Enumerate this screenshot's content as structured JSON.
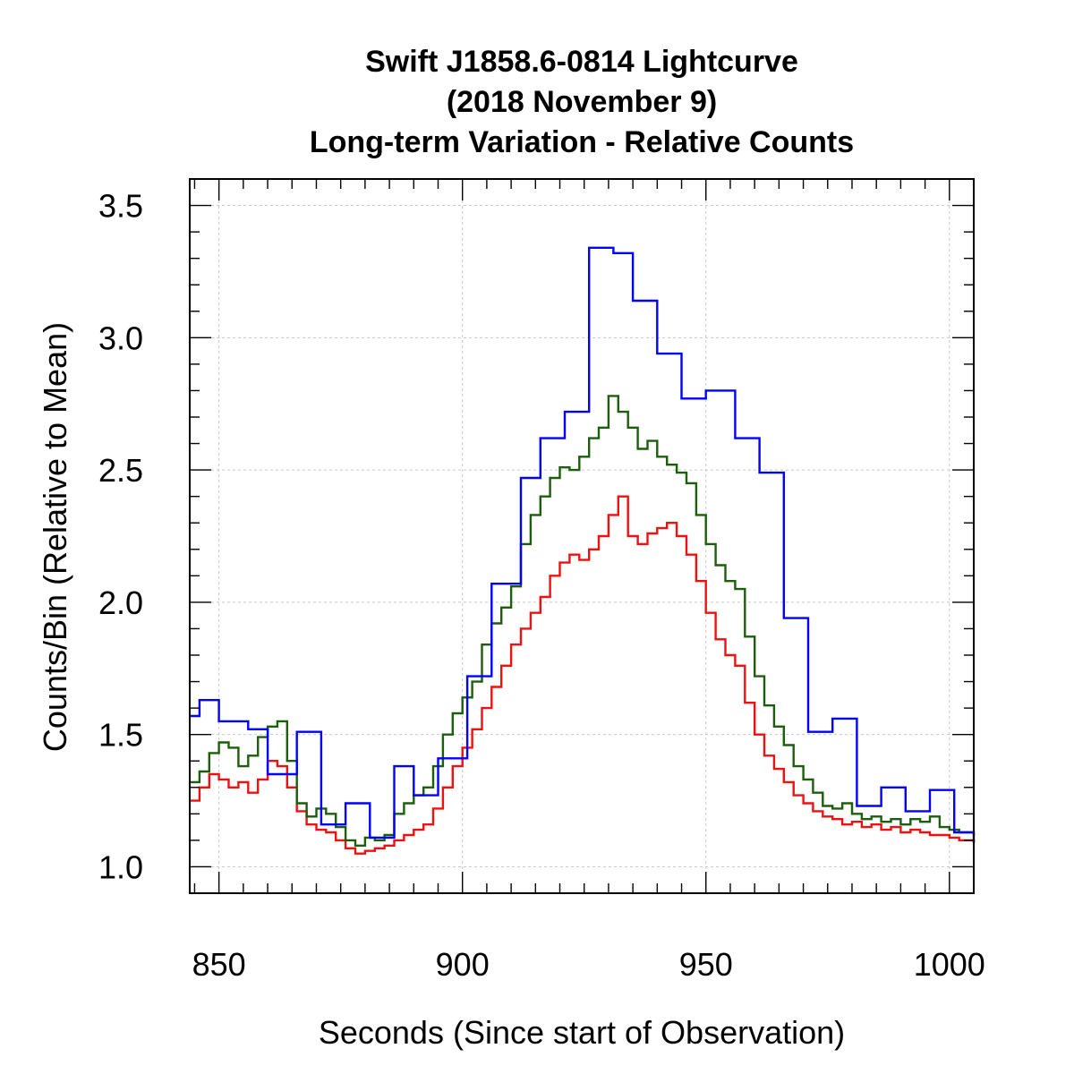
{
  "chart_data": {
    "type": "line",
    "step": true,
    "title": [
      "Swift J1858.6-0814 Lightcurve",
      "(2018 November 9)",
      "Long-term Variation - Relative Counts"
    ],
    "xlabel": "Seconds (Since start of Observation)",
    "ylabel": "Counts/Bin (Relative to Mean)",
    "xlim": [
      844,
      1005
    ],
    "ylim": [
      0.9,
      3.6
    ],
    "xticks": [
      850,
      900,
      950,
      1000
    ],
    "xtick_labels": [
      "850",
      "900",
      "950",
      "1000"
    ],
    "yticks": [
      1.0,
      1.5,
      2.0,
      2.5,
      3.0,
      3.5
    ],
    "ytick_labels": [
      "1.0",
      "1.5",
      "2.0",
      "2.5",
      "3.0",
      "3.5"
    ],
    "grid": true,
    "series": [
      {
        "color": "#0000ff",
        "x": [
          844,
          846,
          850,
          856,
          860,
          866,
          871,
          876,
          881,
          886,
          890,
          895,
          901,
          906,
          912,
          916,
          921,
          926,
          931,
          935,
          940,
          945,
          950,
          956,
          961,
          966,
          971,
          976,
          981,
          986,
          991,
          996,
          1001,
          1005
        ],
        "y": [
          1.57,
          1.63,
          1.55,
          1.52,
          1.35,
          1.51,
          1.16,
          1.24,
          1.11,
          1.38,
          1.27,
          1.41,
          1.72,
          2.07,
          2.47,
          2.62,
          2.72,
          3.34,
          3.32,
          3.14,
          2.94,
          2.77,
          2.8,
          2.62,
          2.49,
          1.94,
          1.51,
          1.56,
          1.23,
          1.3,
          1.21,
          1.29,
          1.13,
          1.09
        ]
      },
      {
        "color": "#1b5e0c",
        "x": [
          844,
          846,
          848,
          850,
          852,
          854,
          856,
          858,
          860,
          862,
          864,
          866,
          868,
          870,
          872,
          874,
          876,
          878,
          880,
          882,
          884,
          886,
          888,
          890,
          892,
          894,
          896,
          898,
          900,
          902,
          904,
          906,
          908,
          910,
          912,
          914,
          916,
          918,
          920,
          922,
          924,
          926,
          928,
          930,
          932,
          934,
          936,
          938,
          940,
          942,
          944,
          946,
          948,
          950,
          952,
          954,
          956,
          958,
          960,
          962,
          964,
          966,
          968,
          970,
          972,
          974,
          976,
          978,
          980,
          982,
          984,
          986,
          988,
          990,
          992,
          994,
          996,
          998,
          1000,
          1002,
          1005
        ],
        "y": [
          1.32,
          1.36,
          1.43,
          1.47,
          1.45,
          1.38,
          1.42,
          1.49,
          1.53,
          1.55,
          1.4,
          1.24,
          1.19,
          1.22,
          1.2,
          1.15,
          1.1,
          1.08,
          1.11,
          1.1,
          1.12,
          1.2,
          1.24,
          1.27,
          1.3,
          1.38,
          1.5,
          1.58,
          1.64,
          1.7,
          1.84,
          1.92,
          1.98,
          2.06,
          2.22,
          2.33,
          2.4,
          2.47,
          2.51,
          2.5,
          2.55,
          2.62,
          2.66,
          2.78,
          2.72,
          2.66,
          2.58,
          2.61,
          2.55,
          2.52,
          2.49,
          2.45,
          2.33,
          2.22,
          2.14,
          2.08,
          2.05,
          1.87,
          1.72,
          1.61,
          1.53,
          1.46,
          1.38,
          1.33,
          1.28,
          1.23,
          1.22,
          1.24,
          1.2,
          1.18,
          1.19,
          1.17,
          1.18,
          1.16,
          1.18,
          1.17,
          1.19,
          1.15,
          1.14,
          1.13,
          1.12
        ]
      },
      {
        "color": "#ee1111",
        "x": [
          844,
          846,
          848,
          850,
          852,
          854,
          856,
          858,
          860,
          862,
          864,
          866,
          868,
          870,
          872,
          874,
          876,
          878,
          880,
          882,
          884,
          886,
          888,
          890,
          892,
          894,
          896,
          898,
          900,
          902,
          904,
          906,
          908,
          910,
          912,
          914,
          916,
          918,
          920,
          922,
          924,
          926,
          928,
          930,
          932,
          934,
          936,
          938,
          940,
          942,
          944,
          946,
          948,
          950,
          952,
          954,
          956,
          958,
          960,
          962,
          964,
          966,
          968,
          970,
          972,
          974,
          976,
          978,
          980,
          982,
          984,
          986,
          988,
          990,
          992,
          994,
          996,
          998,
          1000,
          1002,
          1005
        ],
        "y": [
          1.25,
          1.3,
          1.35,
          1.33,
          1.3,
          1.32,
          1.28,
          1.33,
          1.4,
          1.38,
          1.3,
          1.21,
          1.16,
          1.14,
          1.13,
          1.1,
          1.07,
          1.05,
          1.06,
          1.07,
          1.08,
          1.1,
          1.12,
          1.14,
          1.16,
          1.22,
          1.3,
          1.38,
          1.45,
          1.52,
          1.6,
          1.68,
          1.76,
          1.84,
          1.9,
          1.96,
          2.02,
          2.1,
          2.15,
          2.18,
          2.16,
          2.2,
          2.25,
          2.33,
          2.4,
          2.25,
          2.22,
          2.26,
          2.28,
          2.3,
          2.25,
          2.18,
          2.08,
          1.96,
          1.86,
          1.8,
          1.76,
          1.62,
          1.5,
          1.42,
          1.37,
          1.32,
          1.27,
          1.24,
          1.21,
          1.19,
          1.18,
          1.16,
          1.17,
          1.15,
          1.16,
          1.14,
          1.15,
          1.13,
          1.14,
          1.13,
          1.12,
          1.12,
          1.11,
          1.1,
          1.09
        ]
      }
    ]
  }
}
